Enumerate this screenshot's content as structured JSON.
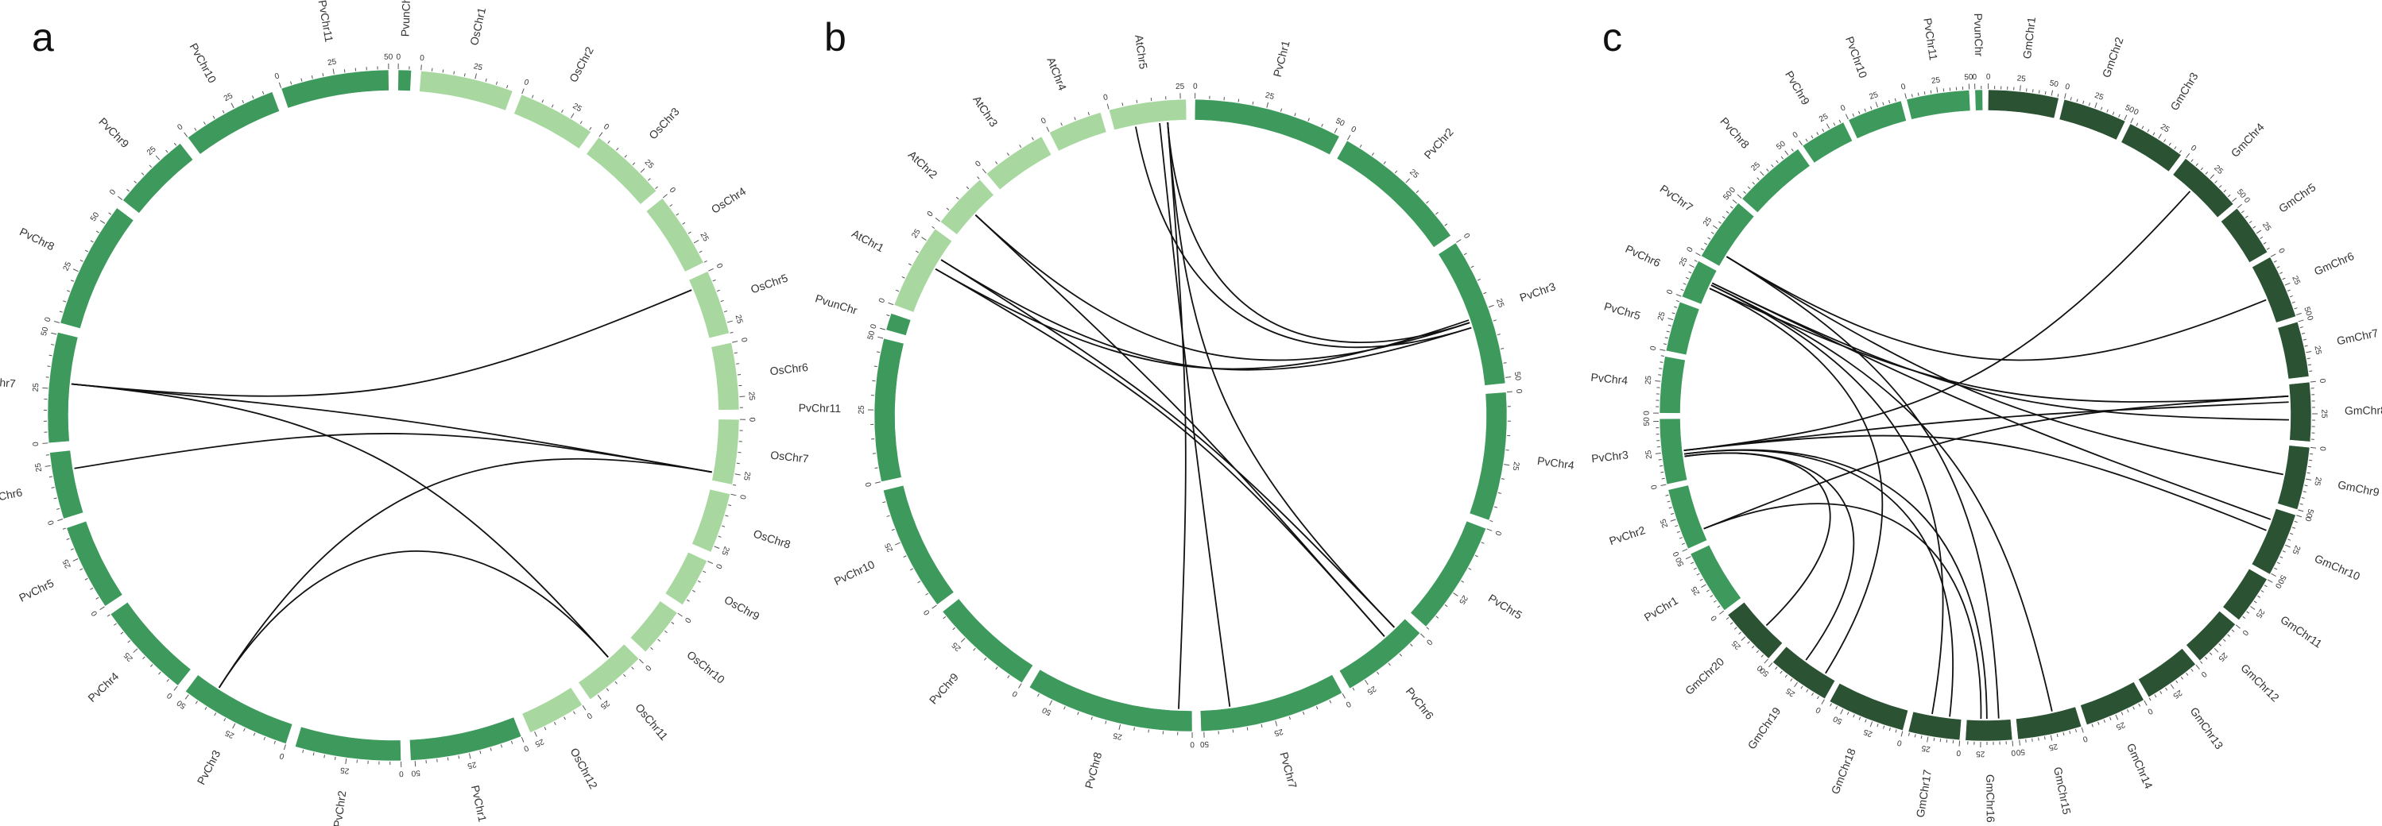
{
  "panels": [
    {
      "id": "a",
      "letter": "a",
      "chromosomes": [
        {
          "name": "PvunChr",
          "length": 6,
          "color": "#3d9a5c"
        },
        {
          "name": "OsChr1",
          "length": 43,
          "color": "#a8d8a0"
        },
        {
          "name": "OsChr2",
          "length": 36,
          "color": "#a8d8a0"
        },
        {
          "name": "OsChr3",
          "length": 36,
          "color": "#a8d8a0"
        },
        {
          "name": "OsChr4",
          "length": 35,
          "color": "#a8d8a0"
        },
        {
          "name": "OsChr5",
          "length": 30,
          "color": "#a8d8a0"
        },
        {
          "name": "OsChr6",
          "length": 31,
          "color": "#a8d8a0"
        },
        {
          "name": "OsChr7",
          "length": 30,
          "color": "#a8d8a0"
        },
        {
          "name": "OsChr8",
          "length": 28,
          "color": "#a8d8a0"
        },
        {
          "name": "OsChr9",
          "length": 23,
          "color": "#a8d8a0"
        },
        {
          "name": "OsChr10",
          "length": 23,
          "color": "#a8d8a0"
        },
        {
          "name": "OsChr11",
          "length": 29,
          "color": "#a8d8a0"
        },
        {
          "name": "OsChr12",
          "length": 27,
          "color": "#a8d8a0"
        },
        {
          "name": "PvChr1",
          "length": 52,
          "color": "#3d9a5c"
        },
        {
          "name": "PvChr2",
          "length": 49,
          "color": "#3d9a5c"
        },
        {
          "name": "PvChr3",
          "length": 52,
          "color": "#3d9a5c"
        },
        {
          "name": "PvChr4",
          "length": 45,
          "color": "#3d9a5c"
        },
        {
          "name": "PvChr5",
          "length": 40,
          "color": "#3d9a5c"
        },
        {
          "name": "PvChr6",
          "length": 31,
          "color": "#3d9a5c"
        },
        {
          "name": "PvChr7",
          "length": 51,
          "color": "#3d9a5c"
        },
        {
          "name": "PvChr8",
          "length": 59,
          "color": "#3d9a5c"
        },
        {
          "name": "PvChr9",
          "length": 37,
          "color": "#3d9a5c"
        },
        {
          "name": "PvChr10",
          "length": 44,
          "color": "#3d9a5c"
        },
        {
          "name": "PvChr11",
          "length": 50,
          "color": "#3d9a5c"
        }
      ],
      "links": [
        {
          "from": [
            "PvChr7",
            28
          ],
          "to": [
            "OsChr5",
            5
          ]
        },
        {
          "from": [
            "PvChr7",
            28
          ],
          "to": [
            "OsChr7",
            26
          ]
        },
        {
          "from": [
            "PvChr7",
            28
          ],
          "to": [
            "OsChr11",
            10
          ]
        },
        {
          "from": [
            "PvChr6",
            22
          ],
          "to": [
            "OsChr7",
            26
          ]
        },
        {
          "from": [
            "PvChr3",
            40
          ],
          "to": [
            "OsChr7",
            26
          ]
        },
        {
          "from": [
            "PvChr3",
            40
          ],
          "to": [
            "OsChr11",
            10
          ]
        }
      ]
    },
    {
      "id": "b",
      "letter": "b",
      "chromosomes": [
        {
          "name": "PvChr1",
          "length": 52,
          "color": "#3d9a5c"
        },
        {
          "name": "PvChr2",
          "length": 49,
          "color": "#3d9a5c"
        },
        {
          "name": "PvChr3",
          "length": 52,
          "color": "#3d9a5c"
        },
        {
          "name": "PvChr4",
          "length": 45,
          "color": "#3d9a5c"
        },
        {
          "name": "PvChr5",
          "length": 40,
          "color": "#3d9a5c"
        },
        {
          "name": "PvChr6",
          "length": 31,
          "color": "#3d9a5c"
        },
        {
          "name": "PvChr7",
          "length": 51,
          "color": "#3d9a5c"
        },
        {
          "name": "PvChr8",
          "length": 59,
          "color": "#3d9a5c"
        },
        {
          "name": "PvChr9",
          "length": 37,
          "color": "#3d9a5c"
        },
        {
          "name": "PvChr10",
          "length": 44,
          "color": "#3d9a5c"
        },
        {
          "name": "PvChr11",
          "length": 50,
          "color": "#3d9a5c"
        },
        {
          "name": "PvunChr",
          "length": 6,
          "color": "#3d9a5c"
        },
        {
          "name": "AtChr1",
          "length": 30,
          "color": "#a8d8a0"
        },
        {
          "name": "AtChr2",
          "length": 20,
          "color": "#a8d8a0"
        },
        {
          "name": "AtChr3",
          "length": 23,
          "color": "#a8d8a0"
        },
        {
          "name": "AtChr4",
          "length": 19,
          "color": "#a8d8a0"
        },
        {
          "name": "AtChr5",
          "length": 27,
          "color": "#a8d8a0"
        }
      ],
      "links": [
        {
          "from": [
            "AtChr5",
            20
          ],
          "to": [
            "PvChr3",
            28
          ]
        },
        {
          "from": [
            "AtChr5",
            20
          ],
          "to": [
            "PvChr6",
            5
          ]
        },
        {
          "from": [
            "AtChr5",
            17
          ],
          "to": [
            "PvChr7",
            40
          ]
        },
        {
          "from": [
            "AtChr5",
            20
          ],
          "to": [
            "PvChr8",
            5
          ]
        },
        {
          "from": [
            "AtChr5",
            8
          ],
          "to": [
            "PvChr3",
            30
          ]
        },
        {
          "from": [
            "AtChr2",
            10
          ],
          "to": [
            "PvChr3",
            28
          ]
        },
        {
          "from": [
            "AtChr2",
            10
          ],
          "to": [
            "PvChr6",
            10
          ]
        },
        {
          "from": [
            "AtChr1",
            22
          ],
          "to": [
            "PvChr3",
            30
          ]
        },
        {
          "from": [
            "AtChr1",
            22
          ],
          "to": [
            "PvChr6",
            5
          ]
        },
        {
          "from": [
            "AtChr1",
            18
          ],
          "to": [
            "PvChr6",
            10
          ]
        },
        {
          "from": [
            "AtChr1",
            18
          ],
          "to": [
            "PvChr3",
            27
          ]
        }
      ]
    },
    {
      "id": "c",
      "letter": "c",
      "chromosomes": [
        {
          "name": "GmChr1",
          "length": 56,
          "color": "#2b5233"
        },
        {
          "name": "GmChr2",
          "length": 51,
          "color": "#2b5233"
        },
        {
          "name": "GmChr3",
          "length": 47,
          "color": "#2b5233"
        },
        {
          "name": "GmChr4",
          "length": 52,
          "color": "#2b5233"
        },
        {
          "name": "GmChr5",
          "length": 42,
          "color": "#2b5233"
        },
        {
          "name": "GmChr6",
          "length": 51,
          "color": "#2b5233"
        },
        {
          "name": "GmChr7",
          "length": 44,
          "color": "#2b5233"
        },
        {
          "name": "GmChr8",
          "length": 47,
          "color": "#2b5233"
        },
        {
          "name": "GmChr9",
          "length": 50,
          "color": "#2b5233"
        },
        {
          "name": "GmChr10",
          "length": 51,
          "color": "#2b5233"
        },
        {
          "name": "GmChr11",
          "length": 39,
          "color": "#2b5233"
        },
        {
          "name": "GmChr12",
          "length": 40,
          "color": "#2b5233"
        },
        {
          "name": "GmChr13",
          "length": 45,
          "color": "#2b5233"
        },
        {
          "name": "GmChr14",
          "length": 49,
          "color": "#2b5233"
        },
        {
          "name": "GmChr15",
          "length": 51,
          "color": "#2b5233"
        },
        {
          "name": "GmChr16",
          "length": 37,
          "color": "#2b5233"
        },
        {
          "name": "GmChr17",
          "length": 41,
          "color": "#2b5233"
        },
        {
          "name": "GmChr18",
          "length": 62,
          "color": "#2b5233"
        },
        {
          "name": "GmChr19",
          "length": 50,
          "color": "#2b5233"
        },
        {
          "name": "GmChr20",
          "length": 47,
          "color": "#2b5233"
        },
        {
          "name": "PvChr1",
          "length": 52,
          "color": "#3d9a5c"
        },
        {
          "name": "PvChr2",
          "length": 49,
          "color": "#3d9a5c"
        },
        {
          "name": "PvChr3",
          "length": 52,
          "color": "#3d9a5c"
        },
        {
          "name": "PvChr4",
          "length": 45,
          "color": "#3d9a5c"
        },
        {
          "name": "PvChr5",
          "length": 40,
          "color": "#3d9a5c"
        },
        {
          "name": "PvChr6",
          "length": 31,
          "color": "#3d9a5c"
        },
        {
          "name": "PvChr7",
          "length": 51,
          "color": "#3d9a5c"
        },
        {
          "name": "PvChr8",
          "length": 59,
          "color": "#3d9a5c"
        },
        {
          "name": "PvChr9",
          "length": 37,
          "color": "#3d9a5c"
        },
        {
          "name": "PvChr10",
          "length": 44,
          "color": "#3d9a5c"
        },
        {
          "name": "PvChr11",
          "length": 50,
          "color": "#3d9a5c"
        },
        {
          "name": "PvunChr",
          "length": 6,
          "color": "#3d9a5c"
        }
      ],
      "links": [
        {
          "from": [
            "PvChr7",
            10
          ],
          "to": [
            "GmChr6",
            30
          ]
        },
        {
          "from": [
            "PvChr7",
            10
          ],
          "to": [
            "GmChr9",
            25
          ]
        },
        {
          "from": [
            "PvChr7",
            10
          ],
          "to": [
            "GmChr16",
            10
          ]
        },
        {
          "from": [
            "PvChr6",
            20
          ],
          "to": [
            "GmChr8",
            30
          ]
        },
        {
          "from": [
            "PvChr6",
            20
          ],
          "to": [
            "GmChr10",
            10
          ]
        },
        {
          "from": [
            "PvChr6",
            18
          ],
          "to": [
            "GmChr15",
            20
          ]
        },
        {
          "from": [
            "PvChr6",
            18
          ],
          "to": [
            "GmChr17",
            25
          ]
        },
        {
          "from": [
            "PvChr6",
            15
          ],
          "to": [
            "GmChr19",
            10
          ]
        },
        {
          "from": [
            "PvChr6",
            15
          ],
          "to": [
            "GmChr8",
            10
          ]
        },
        {
          "from": [
            "PvChr3",
            25
          ],
          "to": [
            "GmChr4",
            20
          ]
        },
        {
          "from": [
            "PvChr3",
            25
          ],
          "to": [
            "GmChr8",
            15
          ]
        },
        {
          "from": [
            "PvChr3",
            25
          ],
          "to": [
            "GmChr10",
            20
          ]
        },
        {
          "from": [
            "PvChr3",
            22
          ],
          "to": [
            "GmChr16",
            20
          ]
        },
        {
          "from": [
            "PvChr3",
            22
          ],
          "to": [
            "GmChr17",
            10
          ]
        },
        {
          "from": [
            "PvChr3",
            20
          ],
          "to": [
            "GmChr20",
            20
          ]
        },
        {
          "from": [
            "PvChr3",
            20
          ],
          "to": [
            "GmChr19",
            30
          ]
        },
        {
          "from": [
            "PvChr2",
            10
          ],
          "to": [
            "GmChr8",
            10
          ]
        },
        {
          "from": [
            "PvChr2",
            10
          ],
          "to": [
            "GmChr16",
            25
          ]
        }
      ]
    }
  ]
}
